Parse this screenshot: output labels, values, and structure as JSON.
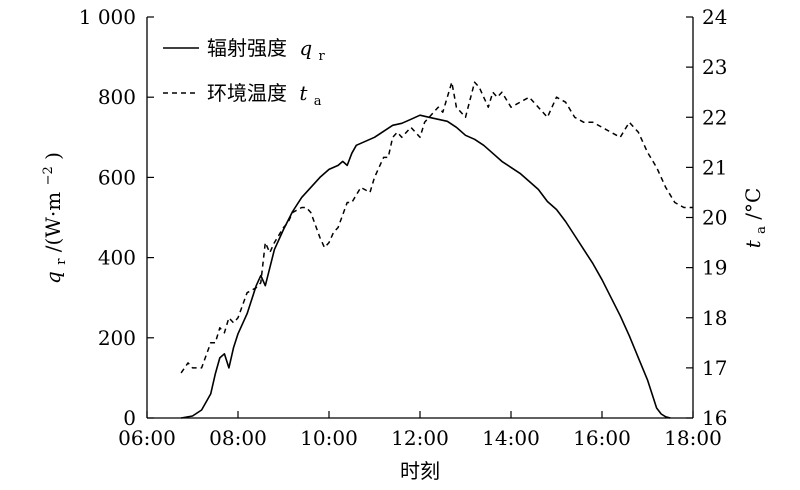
{
  "chart_data": {
    "type": "line",
    "xlabel": "时刻",
    "x_ticks": [
      "06:00",
      "08:00",
      "10:00",
      "12:00",
      "14:00",
      "16:00",
      "18:00"
    ],
    "xlim": [
      6,
      18
    ],
    "y_left": {
      "label_main": "q",
      "label_sub": "r",
      "label_unit_open": "/(W·m",
      "label_unit_sup": "−2",
      "label_unit_close": ")",
      "lim": [
        0,
        1000
      ],
      "ticks": [
        "0",
        "200",
        "400",
        "600",
        "800",
        "1 000"
      ]
    },
    "y_right": {
      "label_main": "t",
      "label_sub": "a",
      "label_unit": "/°C",
      "lim": [
        16,
        24
      ],
      "ticks": [
        "16",
        "17",
        "18",
        "19",
        "20",
        "21",
        "22",
        "23",
        "24"
      ]
    },
    "legend_position": "top-left",
    "series": [
      {
        "name": "辐射强度",
        "name_symbol": "q",
        "name_sub": "r",
        "axis": "left",
        "style": "solid",
        "x": [
          6.75,
          7.0,
          7.2,
          7.4,
          7.5,
          7.6,
          7.7,
          7.8,
          7.9,
          8.0,
          8.2,
          8.4,
          8.5,
          8.6,
          8.8,
          9.0,
          9.2,
          9.4,
          9.6,
          9.8,
          10.0,
          10.2,
          10.3,
          10.4,
          10.5,
          10.6,
          10.8,
          11.0,
          11.2,
          11.4,
          11.6,
          11.8,
          12.0,
          12.2,
          12.4,
          12.6,
          12.8,
          13.0,
          13.2,
          13.4,
          13.6,
          13.8,
          14.0,
          14.2,
          14.4,
          14.6,
          14.8,
          15.0,
          15.2,
          15.4,
          15.6,
          15.8,
          16.0,
          16.2,
          16.4,
          16.6,
          16.8,
          17.0,
          17.2,
          17.3,
          17.4,
          17.5
        ],
        "y": [
          0,
          5,
          20,
          60,
          110,
          150,
          160,
          125,
          175,
          210,
          260,
          330,
          355,
          330,
          420,
          470,
          515,
          550,
          575,
          600,
          620,
          630,
          640,
          630,
          660,
          680,
          690,
          700,
          715,
          730,
          735,
          745,
          755,
          750,
          745,
          740,
          725,
          705,
          695,
          680,
          660,
          640,
          625,
          610,
          590,
          570,
          540,
          520,
          490,
          455,
          420,
          385,
          345,
          300,
          255,
          205,
          150,
          95,
          25,
          10,
          3,
          0
        ]
      },
      {
        "name": "环境温度",
        "name_symbol": "t",
        "name_sub": "a",
        "axis": "right",
        "style": "dashed",
        "x": [
          6.75,
          6.9,
          7.0,
          7.2,
          7.4,
          7.5,
          7.6,
          7.7,
          7.8,
          7.9,
          8.0,
          8.2,
          8.4,
          8.5,
          8.6,
          8.7,
          8.8,
          9.0,
          9.1,
          9.2,
          9.4,
          9.5,
          9.6,
          9.8,
          9.9,
          10.0,
          10.1,
          10.2,
          10.4,
          10.5,
          10.7,
          10.9,
          11.0,
          11.2,
          11.3,
          11.4,
          11.5,
          11.6,
          11.8,
          12.0,
          12.1,
          12.2,
          12.4,
          12.5,
          12.6,
          12.7,
          12.8,
          13.0,
          13.2,
          13.3,
          13.4,
          13.5,
          13.6,
          13.7,
          13.8,
          14.0,
          14.2,
          14.4,
          14.6,
          14.8,
          15.0,
          15.2,
          15.4,
          15.6,
          15.8,
          16.0,
          16.2,
          16.4,
          16.6,
          16.8,
          17.0,
          17.2,
          17.4,
          17.6,
          17.8,
          18.0
        ],
        "y": [
          16.9,
          17.1,
          17.0,
          17.0,
          17.5,
          17.5,
          17.8,
          17.7,
          18.0,
          17.9,
          18.0,
          18.5,
          18.6,
          18.7,
          19.5,
          19.3,
          19.5,
          19.8,
          19.9,
          20.1,
          20.2,
          20.2,
          20.1,
          19.6,
          19.4,
          19.5,
          19.7,
          19.8,
          20.3,
          20.3,
          20.6,
          20.5,
          20.8,
          21.2,
          21.2,
          21.6,
          21.7,
          21.6,
          21.8,
          21.6,
          21.9,
          22.0,
          22.2,
          22.1,
          22.4,
          22.7,
          22.2,
          22.0,
          22.7,
          22.6,
          22.4,
          22.2,
          22.5,
          22.4,
          22.5,
          22.2,
          22.3,
          22.4,
          22.2,
          22.0,
          22.4,
          22.3,
          22.0,
          21.9,
          21.9,
          21.8,
          21.7,
          21.6,
          21.9,
          21.7,
          21.3,
          21.0,
          20.6,
          20.3,
          20.2,
          20.2
        ]
      }
    ]
  }
}
